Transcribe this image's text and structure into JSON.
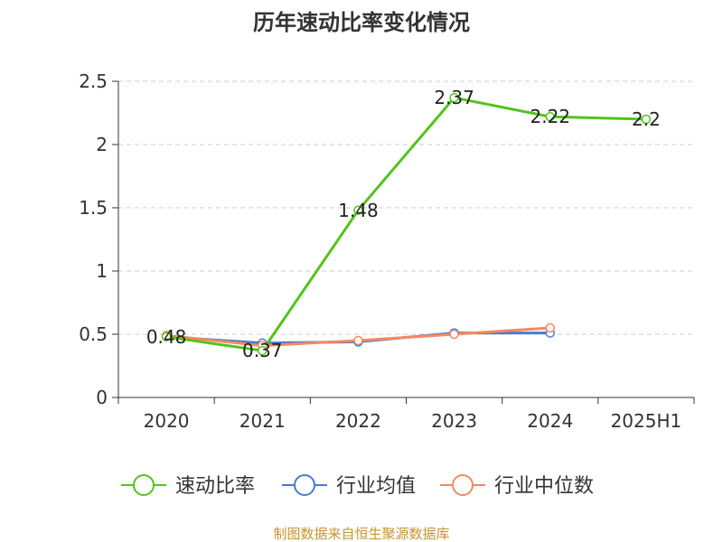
{
  "chart_data": {
    "type": "line",
    "title": "历年速动比率变化情况",
    "categories": [
      "2020",
      "2021",
      "2022",
      "2023",
      "2024",
      "2025H1"
    ],
    "ylim": [
      0,
      2.5
    ],
    "yticks": [
      "0",
      "0.5",
      "1",
      "1.5",
      "2",
      "2.5"
    ],
    "grid": true,
    "legend_position": "bottom",
    "series": [
      {
        "name": "速动比率",
        "color": "#52c41a",
        "values": [
          0.48,
          0.37,
          1.48,
          2.37,
          2.22,
          2.2
        ],
        "labels": [
          "0.48",
          "0.37",
          "1.48",
          "2.37",
          "2.22",
          "2.2"
        ]
      },
      {
        "name": "行业均值",
        "color": "#4a7bd0",
        "values": [
          0.48,
          0.43,
          0.44,
          0.51,
          0.51,
          null
        ]
      },
      {
        "name": "行业中位数",
        "color": "#f4895f",
        "values": [
          0.49,
          0.41,
          0.45,
          0.5,
          0.55,
          null
        ]
      }
    ]
  },
  "source_text": "制图数据来自恒生聚源数据库",
  "source_color": "#c8942e"
}
